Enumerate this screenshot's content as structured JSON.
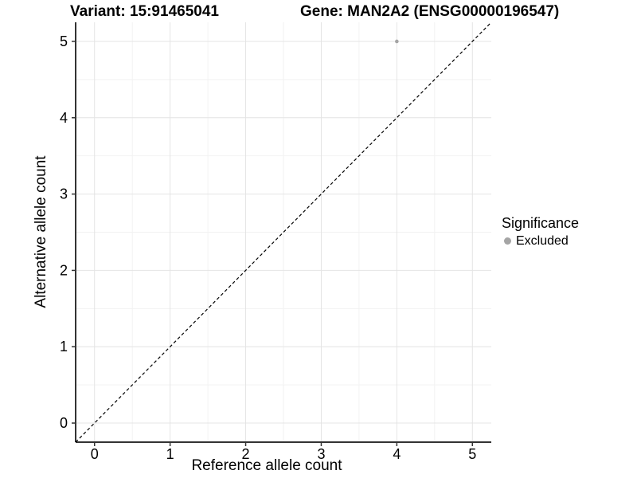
{
  "chart_data": {
    "type": "scatter",
    "titles": [
      "Variant: 15:91465041",
      "Gene: MAN2A2 (ENSG00000196547)"
    ],
    "xlabel": "Reference allele count",
    "ylabel": "Alternative allele count",
    "xlim": [
      -0.25,
      5.25
    ],
    "ylim": [
      -0.25,
      5.25
    ],
    "xticks": [
      0,
      1,
      2,
      3,
      4,
      5
    ],
    "yticks": [
      0,
      1,
      2,
      3,
      4,
      5
    ],
    "minor_grid_offset": 0.5,
    "grid": true,
    "series": [
      {
        "name": "Excluded",
        "color": "#a5a5a5",
        "points": [
          {
            "x": 4,
            "y": 5
          }
        ],
        "point_radius": 2.3
      }
    ],
    "reference_line": {
      "type": "identity",
      "from": [
        -0.25,
        -0.25
      ],
      "to": [
        5.25,
        5.25
      ],
      "style": "dashed",
      "color": "#000000"
    },
    "legend": {
      "position": "right",
      "title": "Significance",
      "items": [
        {
          "label": "Excluded",
          "color": "#a5a5a5"
        }
      ]
    }
  },
  "colors": {
    "background": "#ffffff",
    "grid_major": "#e4e4e4",
    "grid_minor": "#f2f2f2",
    "axis_line": "#333333",
    "tick_label": "#000000"
  }
}
